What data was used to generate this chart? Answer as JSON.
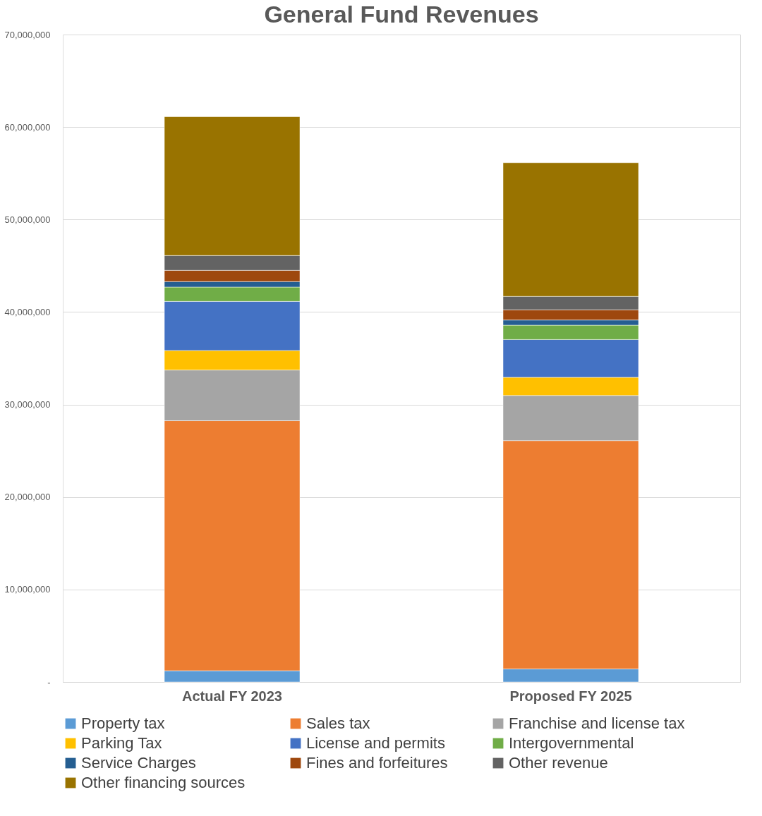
{
  "chart_data": {
    "type": "bar",
    "title": "General Fund Revenues",
    "stacked": true,
    "categories": [
      "Actual FY 2023",
      "Proposed FY 2025"
    ],
    "series": [
      {
        "name": "Property tax",
        "color": "#5b9bd5",
        "values": [
          1220000,
          1410000
        ]
      },
      {
        "name": "Sales tax",
        "color": "#ed7d31",
        "values": [
          27030000,
          24690000
        ]
      },
      {
        "name": "Franchise and license tax",
        "color": "#a5a5a5",
        "values": [
          5480000,
          4880000
        ]
      },
      {
        "name": "Parking Tax",
        "color": "#ffc000",
        "values": [
          2110000,
          1960000
        ]
      },
      {
        "name": "License and permits",
        "color": "#4472c4",
        "values": [
          5310000,
          4090000
        ]
      },
      {
        "name": "Intergovernmental",
        "color": "#70ad47",
        "values": [
          1550000,
          1550000
        ]
      },
      {
        "name": "Service Charges",
        "color": "#255e91",
        "values": [
          590000,
          560000
        ]
      },
      {
        "name": "Fines and forfeitures",
        "color": "#9e480e",
        "values": [
          1220000,
          1100000
        ]
      },
      {
        "name": "Other revenue",
        "color": "#636363",
        "values": [
          1600000,
          1450000
        ]
      },
      {
        "name": "Other financing sources",
        "color": "#997300",
        "values": [
          15010000,
          14450000
        ]
      }
    ],
    "ylim": [
      0,
      70000000
    ],
    "yticks": [
      {
        "value": 0,
        "label": "-"
      },
      {
        "value": 10000000,
        "label": "10,000,000"
      },
      {
        "value": 20000000,
        "label": "20,000,000"
      },
      {
        "value": 30000000,
        "label": "30,000,000"
      },
      {
        "value": 40000000,
        "label": "40,000,000"
      },
      {
        "value": 50000000,
        "label": "50,000,000"
      },
      {
        "value": 60000000,
        "label": "60,000,000"
      },
      {
        "value": 70000000,
        "label": "70,000,000"
      }
    ],
    "grid": "y",
    "legend": "bottom"
  }
}
